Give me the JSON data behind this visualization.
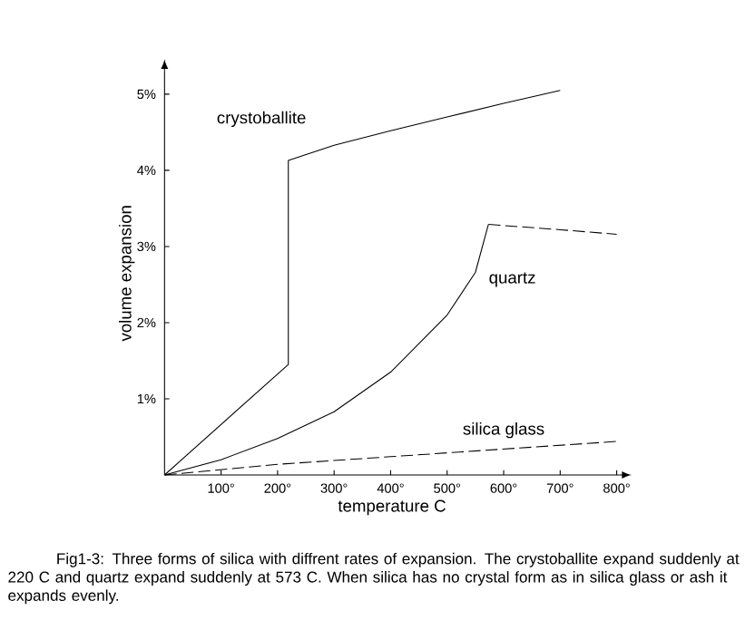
{
  "chart_data": {
    "type": "line",
    "xlabel": "temperature C",
    "ylabel": "volume expansion",
    "xlim": [
      0,
      805
    ],
    "ylim": [
      0,
      5.3
    ],
    "xticks": [
      {
        "value": 100,
        "label": "100°"
      },
      {
        "value": 200,
        "label": "200°"
      },
      {
        "value": 300,
        "label": "300°"
      },
      {
        "value": 400,
        "label": "400°"
      },
      {
        "value": 500,
        "label": "500°"
      },
      {
        "value": 600,
        "label": "600°"
      },
      {
        "value": 700,
        "label": "700°"
      },
      {
        "value": 800,
        "label": "800°"
      }
    ],
    "yticks": [
      {
        "value": 1,
        "label": "1%"
      },
      {
        "value": 2,
        "label": "2%"
      },
      {
        "value": 3,
        "label": "3%"
      },
      {
        "value": 4,
        "label": "4%"
      },
      {
        "value": 5,
        "label": "5%"
      }
    ],
    "grid": false,
    "marker": "none",
    "series": [
      {
        "name": "crystoballite",
        "color": "#000000",
        "line_style": "solid",
        "x": [
          0,
          219,
          219,
          300,
          400,
          500,
          600,
          700
        ],
        "values": [
          0,
          1.45,
          4.13,
          4.33,
          4.52,
          4.7,
          4.88,
          5.05
        ]
      },
      {
        "name": "quartz",
        "color": "#000000",
        "line_style": "solid",
        "x": [
          0,
          100,
          200,
          300,
          400,
          500,
          550,
          573
        ],
        "values": [
          0,
          0.2,
          0.48,
          0.83,
          1.35,
          2.1,
          2.66,
          3.29
        ]
      },
      {
        "color": "#000000",
        "line_style": "dashed",
        "x": [
          573,
          700,
          800
        ],
        "values": [
          3.29,
          3.22,
          3.16
        ]
      },
      {
        "name": "silica glass",
        "color": "#000000",
        "line_style": "dashed",
        "x": [
          0,
          200,
          400,
          600,
          800
        ],
        "values": [
          0,
          0.14,
          0.24,
          0.34,
          0.44
        ]
      }
    ],
    "annotations": [
      "Fig1-3: Three forms of silica with diffrent rates of expansion. The crystoballite expand suddenly at 220 C and quartz expand suddenly at 573 C. When silica has no crystal form as in silica glass or ash it expands evenly."
    ]
  }
}
